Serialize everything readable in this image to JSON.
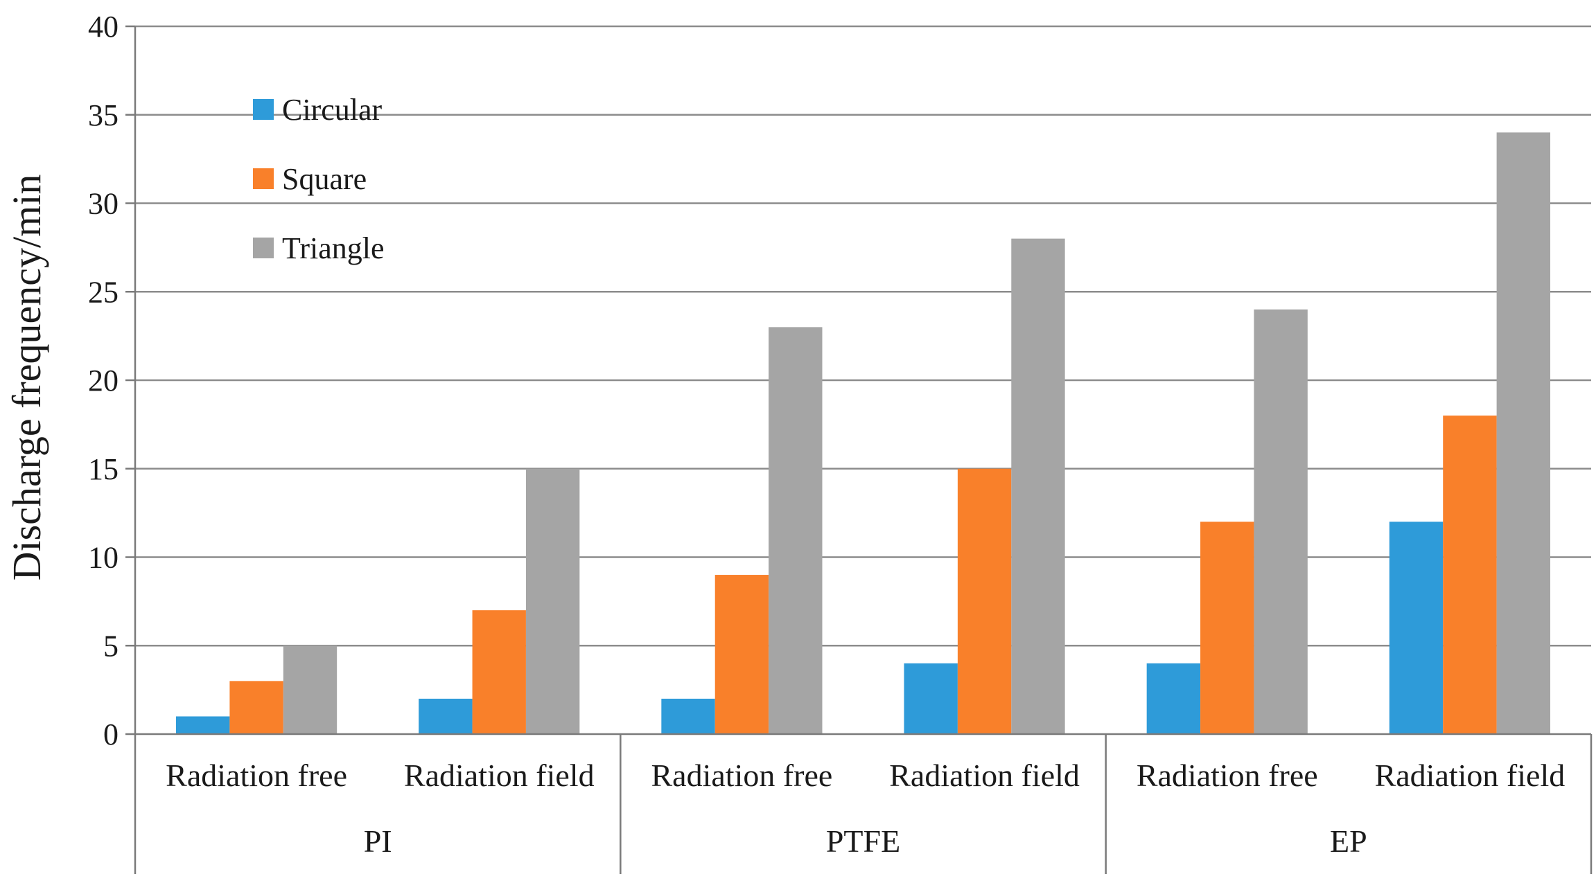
{
  "chart_data": {
    "type": "bar",
    "title": "",
    "xlabel": "",
    "ylabel": "Discharge frequency/min",
    "ylim": [
      0,
      40
    ],
    "yticks": [
      0,
      5,
      10,
      15,
      20,
      25,
      30,
      35,
      40
    ],
    "grid": true,
    "legend_position": "top-left",
    "groups": [
      {
        "name": "PI",
        "categories": [
          "Radiation free",
          "Radiation field"
        ]
      },
      {
        "name": "PTFE",
        "categories": [
          "Radiation free",
          "Radiation field"
        ]
      },
      {
        "name": "EP",
        "categories": [
          "Radiation free",
          "Radiation field"
        ]
      }
    ],
    "categories": [
      "Radiation free",
      "Radiation field",
      "Radiation free",
      "Radiation field",
      "Radiation free",
      "Radiation field"
    ],
    "series": [
      {
        "name": "Circular",
        "color": "#2e9bd9",
        "values": [
          1,
          2,
          2,
          4,
          4,
          12
        ]
      },
      {
        "name": "Square",
        "color": "#f9802a",
        "values": [
          3,
          7,
          9,
          15,
          12,
          18
        ]
      },
      {
        "name": "Triangle",
        "color": "#a5a5a5",
        "values": [
          5,
          15,
          23,
          28,
          24,
          34
        ]
      }
    ]
  }
}
